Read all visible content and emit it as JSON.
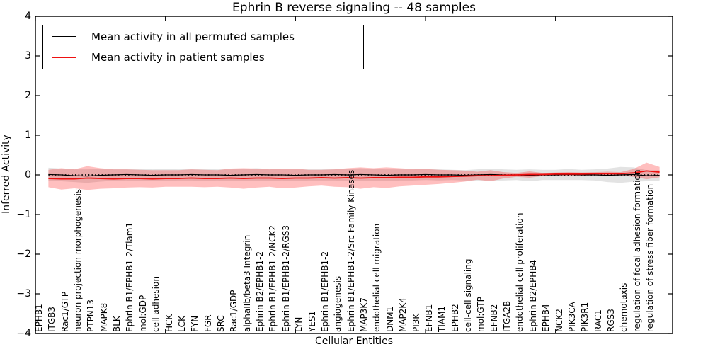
{
  "chart_data": {
    "type": "line",
    "title": "Ephrin B reverse signaling -- 48 samples",
    "xlabel": "Cellular Entities",
    "ylabel": "Inferred Activity",
    "ylim": [
      -4,
      4
    ],
    "xlim": [
      0,
      49
    ],
    "y_ticks": [
      4,
      3,
      2,
      1,
      0,
      -1,
      -2,
      -3,
      -4
    ],
    "x_major_ticks": [
      0,
      10,
      20,
      30,
      40
    ],
    "grid": false,
    "legend_position": "upper left",
    "categories": [
      "EPHB1",
      "ITGB3",
      "Rac1/GTP",
      "neuron projection morphogenesis",
      "PTPN13",
      "MAPK8",
      "BLK",
      "Ephrin B1/EPHB1-2/Tiam1",
      "mol:GDP",
      "cell adhesion",
      "HCK",
      "LCK",
      "FYN",
      "FGR",
      "SRC",
      "Rac1/GDP",
      "alphaIIb/beta3 Integrin",
      "Ephrin B2/EPHB1-2",
      "Ephrin B1/EPHB1-2/NCK2",
      "Ephrin B1/EPHB1-2/RGS3",
      "LYN",
      "YES1",
      "Ephrin B1/EPHB1-2",
      "angiogenesis",
      "Ephrin B1/EPHB1-2/Src Family Kinases",
      "MAP3K7",
      "endothelial cell migration",
      "DNM1",
      "MAP2K4",
      "PI3K",
      "EFNB1",
      "TIAM1",
      "EPHB2",
      "cell-cell signaling",
      "mol:GTP",
      "EFNB2",
      "ITGA2B",
      "endothelial cell proliferation",
      "Ephrin B2/EPHB4",
      "EPHB4",
      "NCK2",
      "PIK3CA",
      "PIK3R1",
      "RAC1",
      "RGS3",
      "chemotaxis",
      "regulation of focal adhesion formation",
      "regulation of stress fiber formation"
    ],
    "series": [
      {
        "name": "Mean activity in all permuted samples",
        "color": "#000000",
        "band_color": "#cccccc",
        "band_opacity": 0.55,
        "line_width": 1.2,
        "values": [
          0.01,
          0.0,
          -0.02,
          -0.03,
          -0.01,
          0.0,
          0.01,
          0.0,
          -0.01,
          0.0,
          0.0,
          0.01,
          0.0,
          0.0,
          -0.01,
          0.0,
          0.01,
          0.0,
          0.0,
          -0.01,
          0.0,
          0.0,
          0.01,
          0.0,
          0.01,
          0.0,
          -0.01,
          0.0,
          0.0,
          0.01,
          0.0,
          0.0,
          -0.01,
          0.0,
          0.01,
          0.0,
          0.0,
          -0.01,
          0.0,
          0.0,
          0.01,
          0.0,
          0.0,
          -0.01,
          0.0,
          0.01,
          -0.02,
          -0.01
        ],
        "band_std": [
          0.17,
          0.16,
          0.16,
          0.17,
          0.16,
          0.15,
          0.15,
          0.16,
          0.15,
          0.15,
          0.14,
          0.15,
          0.15,
          0.14,
          0.15,
          0.15,
          0.16,
          0.15,
          0.14,
          0.15,
          0.14,
          0.14,
          0.15,
          0.15,
          0.16,
          0.15,
          0.15,
          0.14,
          0.14,
          0.14,
          0.14,
          0.13,
          0.13,
          0.14,
          0.15,
          0.14,
          0.13,
          0.15,
          0.13,
          0.13,
          0.14,
          0.13,
          0.14,
          0.17,
          0.2,
          0.18,
          0.14,
          0.13
        ]
      },
      {
        "name": "Mean activity in patient samples",
        "color": "#ee1111",
        "band_color": "#ff0000",
        "band_opacity": 0.25,
        "line_width": 1.8,
        "values": [
          -0.09,
          -0.1,
          -0.1,
          -0.08,
          -0.09,
          -0.1,
          -0.09,
          -0.09,
          -0.1,
          -0.09,
          -0.09,
          -0.08,
          -0.09,
          -0.09,
          -0.08,
          -0.09,
          -0.08,
          -0.08,
          -0.09,
          -0.08,
          -0.08,
          -0.07,
          -0.08,
          -0.07,
          -0.08,
          -0.07,
          -0.07,
          -0.06,
          -0.06,
          -0.05,
          -0.05,
          -0.04,
          -0.03,
          -0.02,
          -0.02,
          -0.01,
          0.0,
          0.01,
          0.01,
          0.02,
          0.02,
          0.02,
          0.03,
          0.03,
          0.03,
          0.05,
          0.1,
          0.07
        ],
        "band_std": [
          0.22,
          0.27,
          0.24,
          0.3,
          0.26,
          0.24,
          0.23,
          0.22,
          0.22,
          0.21,
          0.21,
          0.22,
          0.22,
          0.21,
          0.24,
          0.26,
          0.24,
          0.22,
          0.25,
          0.24,
          0.21,
          0.2,
          0.22,
          0.24,
          0.27,
          0.24,
          0.26,
          0.23,
          0.21,
          0.2,
          0.18,
          0.16,
          0.14,
          0.1,
          0.14,
          0.08,
          0.05,
          0.08,
          0.04,
          0.04,
          0.05,
          0.04,
          0.04,
          0.05,
          0.04,
          0.1,
          0.21,
          0.13
        ]
      }
    ],
    "zero_line": {
      "y": 0,
      "style": "dotted",
      "color": "#000000"
    }
  },
  "colors": {
    "axis": "#000000",
    "background": "#ffffff"
  }
}
